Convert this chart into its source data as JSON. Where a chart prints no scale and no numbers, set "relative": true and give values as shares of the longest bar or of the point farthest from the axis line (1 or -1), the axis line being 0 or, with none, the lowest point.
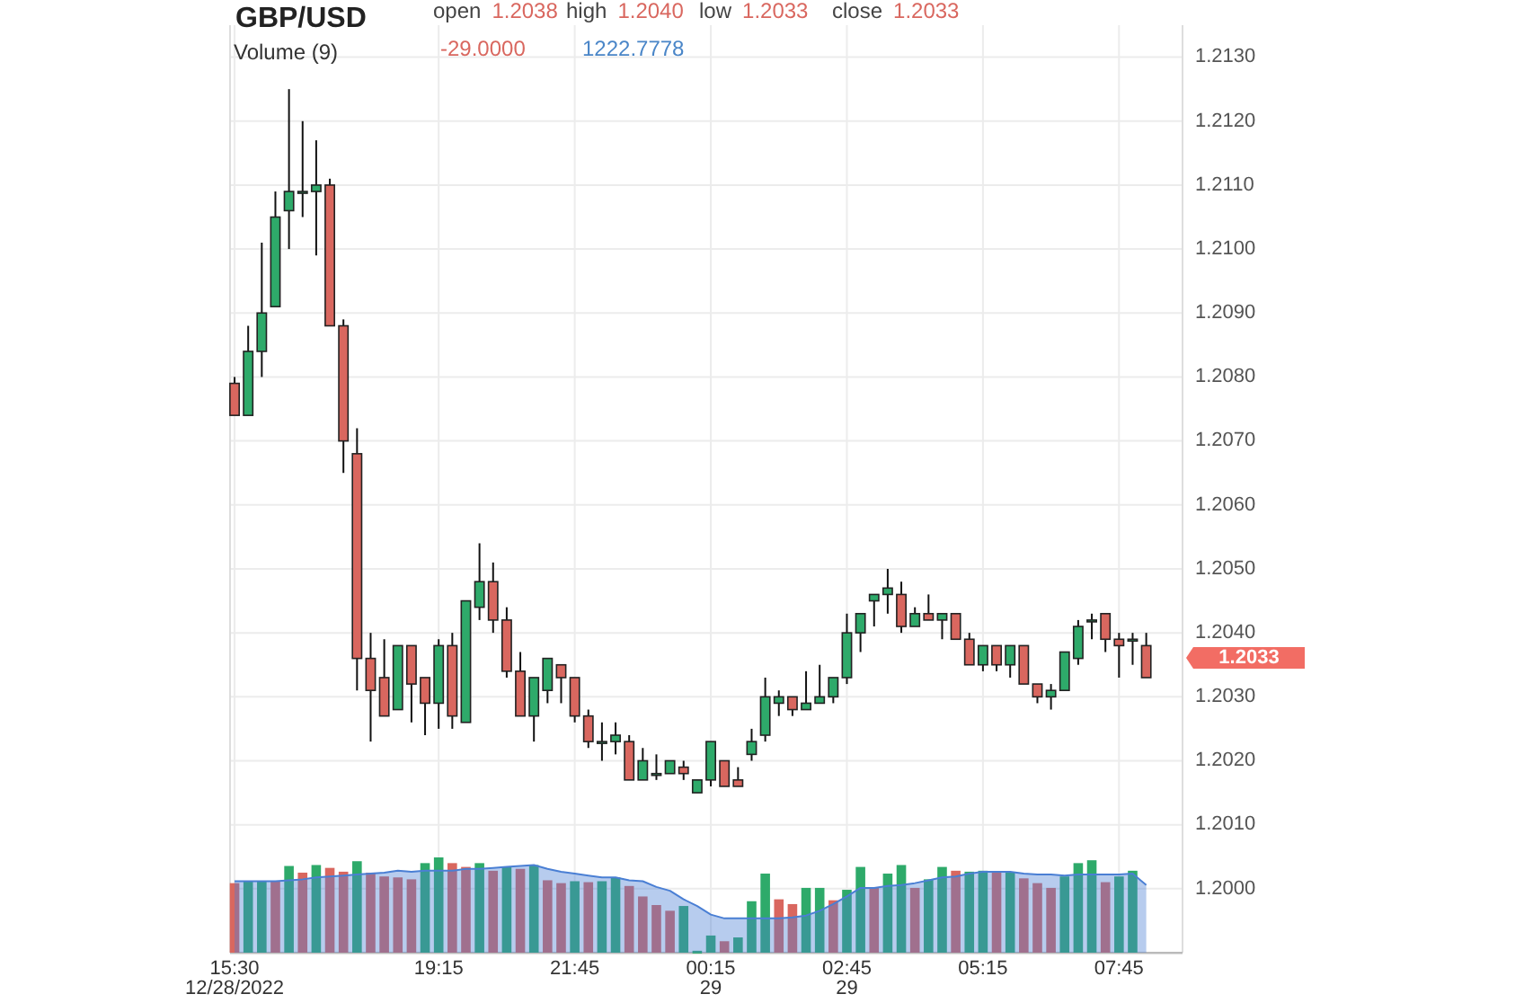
{
  "chart_data": [
    {
      "type": "candlestick",
      "title": "GBP/USD",
      "annotations": [
        "open 1.2038",
        "high 1.2040",
        "low 1.2033",
        "close 1.2033",
        "1.2033"
      ],
      "x": [
        "2022-12-28T15:30",
        "2022-12-28T15:45",
        "2022-12-28T16:00",
        "2022-12-28T16:15",
        "2022-12-28T16:30",
        "2022-12-28T16:45",
        "2022-12-28T17:00",
        "2022-12-28T17:15",
        "2022-12-28T17:30",
        "2022-12-28T17:45",
        "2022-12-28T18:00",
        "2022-12-28T18:15",
        "2022-12-28T18:30",
        "2022-12-28T18:45",
        "2022-12-28T19:00",
        "2022-12-28T19:15",
        "2022-12-28T19:30",
        "2022-12-28T19:45",
        "2022-12-28T20:00",
        "2022-12-28T20:15",
        "2022-12-28T20:30",
        "2022-12-28T20:45",
        "2022-12-28T21:00",
        "2022-12-28T21:15",
        "2022-12-28T21:30",
        "2022-12-28T21:45",
        "2022-12-28T22:00",
        "2022-12-28T22:15",
        "2022-12-28T22:30",
        "2022-12-28T22:45",
        "2022-12-28T23:00",
        "2022-12-28T23:15",
        "2022-12-28T23:30",
        "2022-12-28T23:45",
        "2022-12-29T00:00",
        "2022-12-29T00:15",
        "2022-12-29T00:30",
        "2022-12-29T00:45",
        "2022-12-29T01:00",
        "2022-12-29T01:15",
        "2022-12-29T01:30",
        "2022-12-29T01:45",
        "2022-12-29T02:00",
        "2022-12-29T02:15",
        "2022-12-29T02:30",
        "2022-12-29T02:45",
        "2022-12-29T03:00",
        "2022-12-29T03:15",
        "2022-12-29T03:30",
        "2022-12-29T03:45",
        "2022-12-29T04:00",
        "2022-12-29T04:15",
        "2022-12-29T04:30",
        "2022-12-29T04:45",
        "2022-12-29T05:00",
        "2022-12-29T05:15",
        "2022-12-29T05:30",
        "2022-12-29T05:45",
        "2022-12-29T06:00",
        "2022-12-29T06:15",
        "2022-12-29T06:30",
        "2022-12-29T06:45",
        "2022-12-29T07:00",
        "2022-12-29T07:15",
        "2022-12-29T07:30",
        "2022-12-29T07:45",
        "2022-12-29T08:00",
        "2022-12-29T08:15"
      ],
      "ohlc": [
        [
          1.2079,
          1.208,
          1.2074,
          1.2074
        ],
        [
          1.2074,
          1.2088,
          1.2074,
          1.2084
        ],
        [
          1.2084,
          1.2101,
          1.208,
          1.209
        ],
        [
          1.2091,
          1.2109,
          1.2091,
          1.2105
        ],
        [
          1.2106,
          1.2125,
          1.21,
          1.2109
        ],
        [
          1.2109,
          1.212,
          1.2105,
          1.2109
        ],
        [
          1.2109,
          1.2117,
          1.2099,
          1.211
        ],
        [
          1.211,
          1.2111,
          1.2088,
          1.2088
        ],
        [
          1.2088,
          1.2089,
          1.2065,
          1.207
        ],
        [
          1.2068,
          1.2072,
          1.2031,
          1.2036
        ],
        [
          1.2036,
          1.204,
          1.2023,
          1.2031
        ],
        [
          1.2033,
          1.2039,
          1.2027,
          1.2027
        ],
        [
          1.2028,
          1.2038,
          1.2028,
          1.2038
        ],
        [
          1.2038,
          1.2038,
          1.2026,
          1.2032
        ],
        [
          1.2033,
          1.2033,
          1.2024,
          1.2029
        ],
        [
          1.2029,
          1.2039,
          1.2025,
          1.2038
        ],
        [
          1.2038,
          1.204,
          1.2025,
          1.2027
        ],
        [
          1.2026,
          1.2045,
          1.2026,
          1.2045
        ],
        [
          1.2044,
          1.2054,
          1.2042,
          1.2048
        ],
        [
          1.2048,
          1.2051,
          1.204,
          1.2042
        ],
        [
          1.2042,
          1.2044,
          1.2033,
          1.2034
        ],
        [
          1.2034,
          1.2037,
          1.2027,
          1.2027
        ],
        [
          1.2027,
          1.2033,
          1.2023,
          1.2033
        ],
        [
          1.2031,
          1.2036,
          1.2029,
          1.2036
        ],
        [
          1.2035,
          1.2035,
          1.2029,
          1.2033
        ],
        [
          1.2033,
          1.2033,
          1.2026,
          1.2027
        ],
        [
          1.2027,
          1.2028,
          1.2022,
          1.2023
        ],
        [
          1.2023,
          1.2026,
          1.202,
          1.2023
        ],
        [
          1.2023,
          1.2026,
          1.2021,
          1.2024
        ],
        [
          1.2023,
          1.2024,
          1.2017,
          1.2017
        ],
        [
          1.2017,
          1.2022,
          1.2017,
          1.202
        ],
        [
          1.2018,
          1.2021,
          1.2017,
          1.2018
        ],
        [
          1.2018,
          1.202,
          1.2018,
          1.202
        ],
        [
          1.2019,
          1.202,
          1.2017,
          1.2018
        ],
        [
          1.2015,
          1.2017,
          1.2015,
          1.2017
        ],
        [
          1.2017,
          1.2023,
          1.2016,
          1.2023
        ],
        [
          1.202,
          1.202,
          1.2016,
          1.2016
        ],
        [
          1.2017,
          1.2019,
          1.2016,
          1.2016
        ],
        [
          1.2021,
          1.2025,
          1.202,
          1.2023
        ],
        [
          1.2024,
          1.2033,
          1.2023,
          1.203
        ],
        [
          1.2029,
          1.2031,
          1.2027,
          1.203
        ],
        [
          1.203,
          1.203,
          1.2027,
          1.2028
        ],
        [
          1.2028,
          1.2034,
          1.2028,
          1.2029
        ],
        [
          1.2029,
          1.2035,
          1.2029,
          1.203
        ],
        [
          1.203,
          1.2033,
          1.2029,
          1.2033
        ],
        [
          1.2033,
          1.2043,
          1.2032,
          1.204
        ],
        [
          1.204,
          1.2043,
          1.2037,
          1.2043
        ],
        [
          1.2045,
          1.2046,
          1.2041,
          1.2046
        ],
        [
          1.2046,
          1.205,
          1.2043,
          1.2047
        ],
        [
          1.2046,
          1.2048,
          1.204,
          1.2041
        ],
        [
          1.2041,
          1.2044,
          1.2041,
          1.2043
        ],
        [
          1.2043,
          1.2046,
          1.2042,
          1.2042
        ],
        [
          1.2042,
          1.2043,
          1.2039,
          1.2043
        ],
        [
          1.2043,
          1.2043,
          1.2039,
          1.2039
        ],
        [
          1.2039,
          1.204,
          1.2035,
          1.2035
        ],
        [
          1.2035,
          1.2038,
          1.2034,
          1.2038
        ],
        [
          1.2038,
          1.2038,
          1.2034,
          1.2035
        ],
        [
          1.2035,
          1.2038,
          1.2033,
          1.2038
        ],
        [
          1.2038,
          1.2038,
          1.2032,
          1.2032
        ],
        [
          1.2032,
          1.2032,
          1.2029,
          1.203
        ],
        [
          1.203,
          1.2032,
          1.2028,
          1.2031
        ],
        [
          1.2031,
          1.2037,
          1.2031,
          1.2037
        ],
        [
          1.2036,
          1.2042,
          1.2035,
          1.2041
        ],
        [
          1.2042,
          1.2043,
          1.2039,
          1.2042
        ],
        [
          1.2043,
          1.2043,
          1.2037,
          1.2039
        ],
        [
          1.2039,
          1.204,
          1.2033,
          1.2038
        ],
        [
          1.2039,
          1.204,
          1.2035,
          1.2039
        ],
        [
          1.2038,
          1.204,
          1.2033,
          1.2033
        ]
      ],
      "colors": [
        "#d9675f",
        "#2eaa6a",
        "#2eaa6a",
        "#2eaa6a",
        "#2eaa6a",
        "#2eaa6a",
        "#2eaa6a",
        "#d9675f",
        "#d9675f",
        "#d9675f",
        "#d9675f",
        "#d9675f",
        "#2eaa6a",
        "#d9675f",
        "#d9675f",
        "#2eaa6a",
        "#d9675f",
        "#2eaa6a",
        "#2eaa6a",
        "#d9675f",
        "#d9675f",
        "#d9675f",
        "#2eaa6a",
        "#2eaa6a",
        "#d9675f",
        "#d9675f",
        "#d9675f",
        "#2eaa6a",
        "#2eaa6a",
        "#d9675f",
        "#2eaa6a",
        "#2eaa6a",
        "#2eaa6a",
        "#d9675f",
        "#2eaa6a",
        "#2eaa6a",
        "#d9675f",
        "#d9675f",
        "#2eaa6a",
        "#2eaa6a",
        "#2eaa6a",
        "#d9675f",
        "#2eaa6a",
        "#2eaa6a",
        "#2eaa6a",
        "#2eaa6a",
        "#2eaa6a",
        "#2eaa6a",
        "#2eaa6a",
        "#d9675f",
        "#2eaa6a",
        "#d9675f",
        "#2eaa6a",
        "#d9675f",
        "#d9675f",
        "#2eaa6a",
        "#d9675f",
        "#2eaa6a",
        "#d9675f",
        "#d9675f",
        "#2eaa6a",
        "#2eaa6a",
        "#2eaa6a",
        "#2eaa6a",
        "#d9675f",
        "#d9675f",
        "#2eaa6a",
        "#d9675f"
      ],
      "xlim": [
        "2022-12-28T15:25",
        "2022-12-29T08:55"
      ],
      "xticks": [
        {
          "value": "2022-12-28T15:30",
          "label": "15:30\n12/28/2022"
        },
        {
          "value": "2022-12-28T19:15",
          "label": "19:15"
        },
        {
          "value": "2022-12-28T21:45",
          "label": "21:45"
        },
        {
          "value": "2022-12-29T00:15",
          "label": "00:15\n29"
        },
        {
          "value": "2022-12-29T02:45",
          "label": "02:45\n29"
        },
        {
          "value": "2022-12-29T05:15",
          "label": "05:15"
        },
        {
          "value": "2022-12-29T07:45",
          "label": "07:45"
        }
      ],
      "ylim": [
        1.199,
        1.2135
      ],
      "yticks": [
        {
          "value": 1.2,
          "label": "1.2000"
        },
        {
          "value": 1.201,
          "label": "1.2010"
        },
        {
          "value": 1.202,
          "label": "1.2020"
        },
        {
          "value": 1.203,
          "label": "1.2030"
        },
        {
          "value": 1.204,
          "label": "1.2040"
        },
        {
          "value": 1.205,
          "label": "1.2050"
        },
        {
          "value": 1.206,
          "label": "1.2060"
        },
        {
          "value": 1.207,
          "label": "1.2070"
        },
        {
          "value": 1.208,
          "label": "1.2080"
        },
        {
          "value": 1.209,
          "label": "1.2090"
        },
        {
          "value": 1.21,
          "label": "1.2100"
        },
        {
          "value": 1.211,
          "label": "1.2110"
        },
        {
          "value": 1.212,
          "label": "1.2120"
        },
        {
          "value": 1.213,
          "label": "1.2130"
        }
      ],
      "grid": true
    },
    {
      "type": "bar",
      "title": "Volume (9)",
      "annotations": [
        "-29.0000",
        "1222.7778"
      ],
      "relative": true,
      "x": [
        "2022-12-28T15:30",
        "2022-12-28T15:45",
        "2022-12-28T16:00",
        "2022-12-28T16:15",
        "2022-12-28T16:30",
        "2022-12-28T16:45",
        "2022-12-28T17:00",
        "2022-12-28T17:15",
        "2022-12-28T17:30",
        "2022-12-28T17:45",
        "2022-12-28T18:00",
        "2022-12-28T18:15",
        "2022-12-28T18:30",
        "2022-12-28T18:45",
        "2022-12-28T19:00",
        "2022-12-28T19:15",
        "2022-12-28T19:30",
        "2022-12-28T19:45",
        "2022-12-28T20:00",
        "2022-12-28T20:15",
        "2022-12-28T20:30",
        "2022-12-28T20:45",
        "2022-12-28T21:00",
        "2022-12-28T21:15",
        "2022-12-28T21:30",
        "2022-12-28T21:45",
        "2022-12-28T22:00",
        "2022-12-28T22:15",
        "2022-12-28T22:30",
        "2022-12-28T22:45",
        "2022-12-28T23:00",
        "2022-12-28T23:15",
        "2022-12-28T23:30",
        "2022-12-28T23:45",
        "2022-12-29T00:00",
        "2022-12-29T00:15",
        "2022-12-29T00:30",
        "2022-12-29T00:45",
        "2022-12-29T01:00",
        "2022-12-29T01:15",
        "2022-12-29T01:30",
        "2022-12-29T01:45",
        "2022-12-29T02:00",
        "2022-12-29T02:15",
        "2022-12-29T02:30",
        "2022-12-29T02:45",
        "2022-12-29T03:00",
        "2022-12-29T03:15",
        "2022-12-29T03:30",
        "2022-12-29T03:45",
        "2022-12-29T04:00",
        "2022-12-29T04:15",
        "2022-12-29T04:30",
        "2022-12-29T04:45",
        "2022-12-29T05:00",
        "2022-12-29T05:15",
        "2022-12-29T05:30",
        "2022-12-29T05:45",
        "2022-12-29T06:00",
        "2022-12-29T06:15",
        "2022-12-29T06:30",
        "2022-12-29T06:45",
        "2022-12-29T07:00",
        "2022-12-29T07:15",
        "2022-12-29T07:30",
        "2022-12-29T07:45",
        "2022-12-29T08:00",
        "2022-12-29T08:15"
      ],
      "xlim": [
        "2022-12-28T15:25",
        "2022-12-29T08:55"
      ],
      "series": [
        {
          "values": [
            0.73,
            0.75,
            0.75,
            0.75,
            0.91,
            0.84,
            0.92,
            0.89,
            0.85,
            0.96,
            0.84,
            0.8,
            0.79,
            0.77,
            0.94,
            1.0,
            0.94,
            0.9,
            0.94,
            0.86,
            0.9,
            0.88,
            0.92,
            0.76,
            0.73,
            0.75,
            0.74,
            0.75,
            0.79,
            0.7,
            0.59,
            0.5,
            0.44,
            0.49,
            0.02,
            0.18,
            0.12,
            0.16,
            0.54,
            0.83,
            0.56,
            0.51,
            0.68,
            0.68,
            0.55,
            0.66,
            0.9,
            0.68,
            0.83,
            0.92,
            0.68,
            0.77,
            0.9,
            0.86,
            0.85,
            0.86,
            0.85,
            0.84,
            0.78,
            0.73,
            0.68,
            0.8,
            0.94,
            0.97,
            0.74,
            0.8,
            0.86
          ],
          "colors": [
            "#d9675f",
            "#2eaa6a",
            "#2eaa6a",
            "#d9675f",
            "#2eaa6a",
            "#d9675f",
            "#2eaa6a",
            "#d9675f",
            "#d9675f",
            "#2eaa6a",
            "#d9675f",
            "#d9675f",
            "#d9675f",
            "#d9675f",
            "#2eaa6a",
            "#2eaa6a",
            "#d9675f",
            "#d9675f",
            "#2eaa6a",
            "#d9675f",
            "#2eaa6a",
            "#d9675f",
            "#2eaa6a",
            "#d9675f",
            "#d9675f",
            "#2eaa6a",
            "#d9675f",
            "#2eaa6a",
            "#2eaa6a",
            "#d9675f",
            "#d9675f",
            "#d9675f",
            "#d9675f",
            "#2eaa6a",
            "#2eaa6a",
            "#2eaa6a",
            "#d9675f",
            "#2eaa6a",
            "#2eaa6a",
            "#2eaa6a",
            "#d9675f",
            "#d9675f",
            "#2eaa6a",
            "#2eaa6a",
            "#d9675f",
            "#2eaa6a",
            "#2eaa6a",
            "#d9675f",
            "#2eaa6a",
            "#2eaa6a",
            "#d9675f",
            "#2eaa6a",
            "#2eaa6a",
            "#d9675f",
            "#2eaa6a",
            "#2eaa6a",
            "#d9675f",
            "#2eaa6a",
            "#d9675f",
            "#d9675f",
            "#d9675f",
            "#2eaa6a",
            "#2eaa6a",
            "#2eaa6a",
            "#d9675f",
            "#2eaa6a",
            "#2eaa6a"
          ],
          "x": [
            "2022-12-28T15:30",
            "2022-12-28T15:45",
            "2022-12-28T16:00",
            "2022-12-28T16:15",
            "2022-12-28T16:30",
            "2022-12-28T16:45",
            "2022-12-28T17:00",
            "2022-12-28T17:15",
            "2022-12-28T17:30",
            "2022-12-28T17:45",
            "2022-12-28T18:00",
            "2022-12-28T18:15",
            "2022-12-28T18:30",
            "2022-12-28T18:45",
            "2022-12-28T19:00",
            "2022-12-28T19:15",
            "2022-12-28T19:30",
            "2022-12-28T19:45",
            "2022-12-28T20:00",
            "2022-12-28T20:15",
            "2022-12-28T20:30",
            "2022-12-28T20:45",
            "2022-12-28T21:00",
            "2022-12-28T21:15",
            "2022-12-28T21:30",
            "2022-12-28T21:45",
            "2022-12-28T22:00",
            "2022-12-28T22:15",
            "2022-12-28T22:30",
            "2022-12-28T22:45",
            "2022-12-28T23:00",
            "2022-12-28T23:15",
            "2022-12-28T23:30",
            "2022-12-28T23:45",
            "2022-12-29T00:00",
            "2022-12-29T00:15",
            "2022-12-29T00:30",
            "2022-12-29T00:45",
            "2022-12-29T01:00",
            "2022-12-29T01:15",
            "2022-12-29T01:30",
            "2022-12-29T01:45",
            "2022-12-29T02:00",
            "2022-12-29T02:15",
            "2022-12-29T02:30",
            "2022-12-29T02:45",
            "2022-12-29T03:00",
            "2022-12-29T03:15",
            "2022-12-29T03:30",
            "2022-12-29T03:45",
            "2022-12-29T04:00",
            "2022-12-29T04:15",
            "2022-12-29T04:30",
            "2022-12-29T04:45",
            "2022-12-29T05:00",
            "2022-12-29T05:15",
            "2022-12-29T05:30",
            "2022-12-29T05:45",
            "2022-12-29T06:00",
            "2022-12-29T06:15",
            "2022-12-29T06:30",
            "2022-12-29T06:45",
            "2022-12-29T07:00",
            "2022-12-29T07:15",
            "2022-12-29T07:30",
            "2022-12-29T07:45",
            "2022-12-29T08:00"
          ]
        },
        {
          "type": "area",
          "color": "#4a7fd4",
          "values": [
            0.75,
            0.75,
            0.75,
            0.75,
            0.76,
            0.77,
            0.79,
            0.8,
            0.81,
            0.82,
            0.83,
            0.84,
            0.86,
            0.85,
            0.86,
            0.86,
            0.86,
            0.88,
            0.88,
            0.89,
            0.9,
            0.91,
            0.92,
            0.88,
            0.85,
            0.83,
            0.81,
            0.79,
            0.79,
            0.76,
            0.75,
            0.69,
            0.65,
            0.56,
            0.49,
            0.4,
            0.36,
            0.36,
            0.36,
            0.36,
            0.36,
            0.37,
            0.39,
            0.44,
            0.51,
            0.59,
            0.68,
            0.68,
            0.7,
            0.71,
            0.73,
            0.76,
            0.79,
            0.8,
            0.83,
            0.85,
            0.85,
            0.85,
            0.83,
            0.82,
            0.82,
            0.81,
            0.82,
            0.82,
            0.82,
            0.82,
            0.83,
            0.71
          ]
        }
      ]
    }
  ]
}
